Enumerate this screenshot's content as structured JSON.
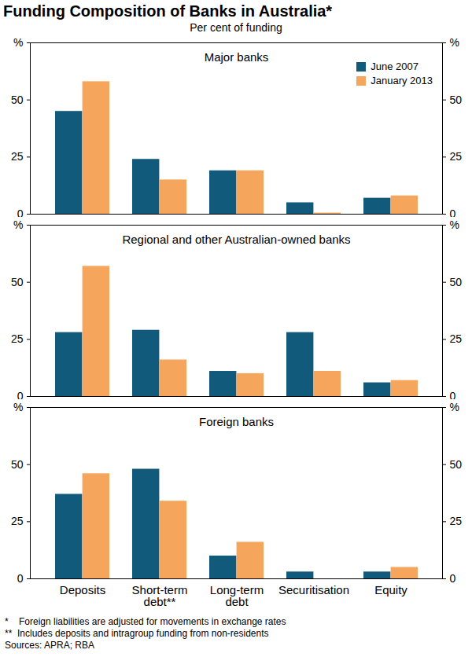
{
  "title": "Funding Composition of Banks in Australia*",
  "subtitle": "Per cent of funding",
  "notes": [
    "*    Foreign liabilities are adjusted for movements in exchange rates",
    "**  Includes deposits and intragroup funding from non-residents",
    "Sources: APRA; RBA"
  ],
  "chart_data": [
    {
      "type": "bar",
      "title": "Major banks",
      "categories": [
        "Deposits",
        "Short-term\ndebt**",
        "Long-term\ndebt",
        "Securitisation",
        "Equity"
      ],
      "series": [
        {
          "name": "June 2007",
          "color": "#125a7c",
          "values": [
            45,
            24,
            19,
            5,
            7
          ]
        },
        {
          "name": "January 2013",
          "color": "#f6a55c",
          "values": [
            58,
            15,
            19,
            0.5,
            8
          ]
        }
      ],
      "ylim": [
        0,
        75
      ],
      "yticks": [
        0,
        25,
        50,
        {
          "value": 75,
          "label": "%"
        }
      ],
      "grid": false,
      "legend": "top-right",
      "tick_labels": "y"
    },
    {
      "type": "bar",
      "title": "Regional and other Australian-owned banks",
      "categories": [
        "Deposits",
        "Short-term\ndebt**",
        "Long-term\ndebt",
        "Securitisation",
        "Equity"
      ],
      "series": [
        {
          "name": "June 2007",
          "color": "#125a7c",
          "values": [
            28,
            29,
            11,
            28,
            6
          ]
        },
        {
          "name": "January 2013",
          "color": "#f6a55c",
          "values": [
            57,
            16,
            10,
            11,
            7
          ]
        }
      ],
      "ylim": [
        0,
        75
      ],
      "yticks": [
        0,
        25,
        50,
        {
          "value": 75,
          "label": "%"
        }
      ],
      "grid": false,
      "tick_labels": "y"
    },
    {
      "type": "bar",
      "title": "Foreign banks",
      "categories": [
        "Deposits",
        "Short-term\ndebt**",
        "Long-term\ndebt",
        "Securitisation",
        "Equity"
      ],
      "series": [
        {
          "name": "June 2007",
          "color": "#125a7c",
          "values": [
            37,
            48,
            10,
            3,
            3
          ]
        },
        {
          "name": "January 2013",
          "color": "#f6a55c",
          "values": [
            46,
            34,
            16,
            0,
            5
          ]
        }
      ],
      "ylim": [
        0,
        75
      ],
      "yticks": [
        0,
        25,
        50,
        {
          "value": 75,
          "label": "%"
        }
      ],
      "grid": false
    }
  ]
}
